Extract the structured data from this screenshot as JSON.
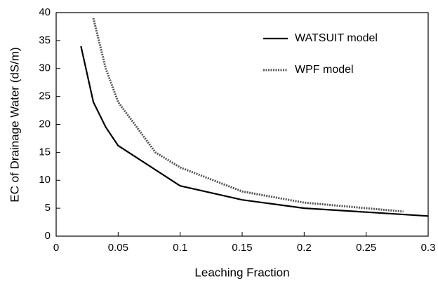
{
  "chart_data": {
    "type": "line",
    "xlabel": "Leaching Fraction",
    "ylabel": "EC of Drainage Water (dS/m)",
    "xlim": [
      0,
      0.3
    ],
    "xticks": [
      0,
      0.05,
      0.1,
      0.15,
      0.2,
      0.25,
      0.3
    ],
    "ylim": [
      0,
      40
    ],
    "yticks": [
      0,
      5,
      10,
      15,
      20,
      25,
      30,
      35,
      40
    ],
    "grid": false,
    "legend": "upper right",
    "series": [
      {
        "name": "WATSUIT model",
        "color": "#000000",
        "style": "solid",
        "x": [
          0.02,
          0.03,
          0.04,
          0.05,
          0.1,
          0.15,
          0.2,
          0.25,
          0.3
        ],
        "values": [
          34,
          24,
          19.5,
          16.2,
          9,
          6.5,
          5,
          4.3,
          3.6
        ]
      },
      {
        "name": "WPF model",
        "color": "#555555",
        "style": "dotted",
        "x": [
          0.03,
          0.04,
          0.05,
          0.06,
          0.08,
          0.1,
          0.15,
          0.2,
          0.25,
          0.28
        ],
        "values": [
          39,
          30,
          24,
          21,
          15,
          12.3,
          8,
          6,
          5,
          4.4
        ]
      }
    ]
  }
}
